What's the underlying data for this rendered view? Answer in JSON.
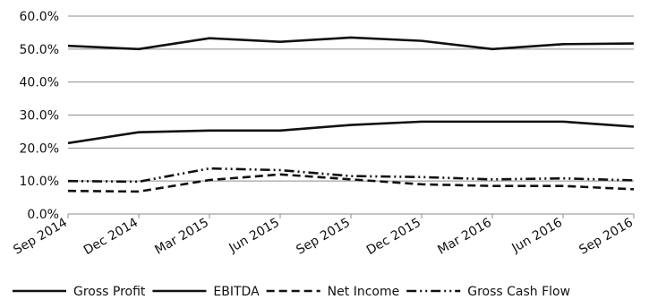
{
  "chart_data": {
    "type": "line",
    "categories": [
      "Sep 2014",
      "Dec 2014",
      "Mar 2015",
      "Jun 2015",
      "Sep 2015",
      "Dec 2015",
      "Mar 2016",
      "Jun 2016",
      "Sep 2016"
    ],
    "series": [
      {
        "name": "Gross Profit",
        "values": [
          51.0,
          50.0,
          53.3,
          52.2,
          53.5,
          52.5,
          50.0,
          51.5,
          51.7
        ],
        "style": "solid"
      },
      {
        "name": "EBITDA",
        "values": [
          21.5,
          24.8,
          25.3,
          25.3,
          27.0,
          28.0,
          28.0,
          28.0,
          26.5
        ],
        "style": "solid"
      },
      {
        "name": "Net Income",
        "values": [
          7.0,
          6.8,
          10.3,
          12.0,
          10.5,
          9.0,
          8.5,
          8.5,
          7.5
        ],
        "style": "dash"
      },
      {
        "name": "Gross Cash Flow",
        "values": [
          10.0,
          9.8,
          13.8,
          13.3,
          11.5,
          11.2,
          10.5,
          10.8,
          10.2
        ],
        "style": "dashdotdot"
      }
    ],
    "y_ticks": [
      "0.0%",
      "10.0%",
      "20.0%",
      "30.0%",
      "40.0%",
      "50.0%",
      "60.0%"
    ],
    "ylim": [
      0,
      60
    ],
    "title": "",
    "xlabel": "",
    "ylabel": "",
    "grid": true,
    "legend_position": "bottom",
    "line_color": "#111111",
    "grid_color": "#8c8c8c"
  }
}
